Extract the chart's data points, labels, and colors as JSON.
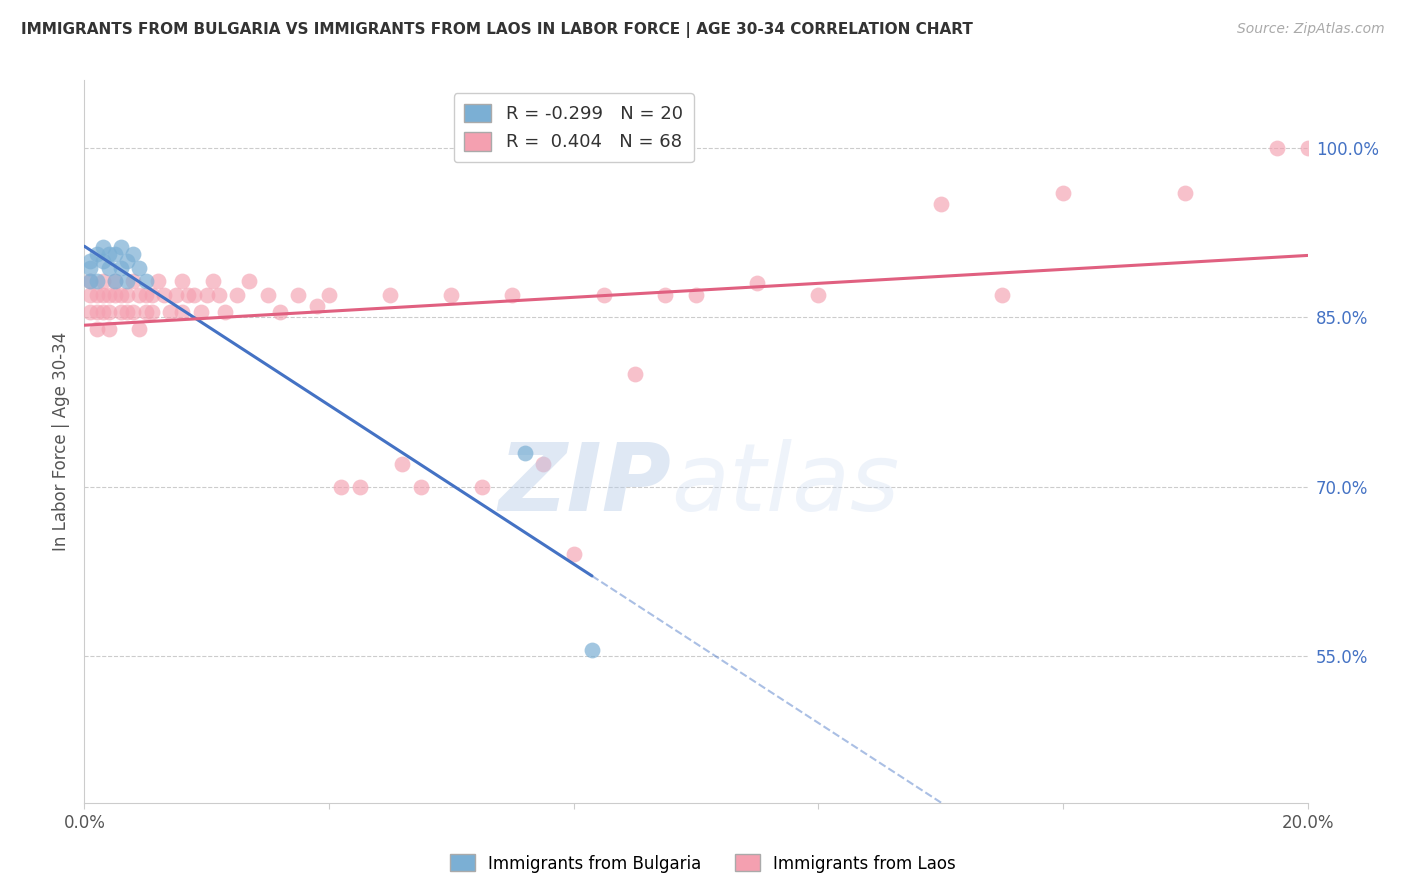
{
  "title": "IMMIGRANTS FROM BULGARIA VS IMMIGRANTS FROM LAOS IN LABOR FORCE | AGE 30-34 CORRELATION CHART",
  "source": "Source: ZipAtlas.com",
  "ylabel_label": "In Labor Force | Age 30-34",
  "xlim": [
    0.0,
    0.2
  ],
  "ylim": [
    0.42,
    1.06
  ],
  "x_ticks": [
    0.0,
    0.04,
    0.08,
    0.12,
    0.16,
    0.2
  ],
  "x_tick_labels": [
    "0.0%",
    "",
    "",
    "",
    "",
    "20.0%"
  ],
  "y_ticks_right": [
    0.55,
    0.7,
    0.85,
    1.0
  ],
  "y_tick_labels_right": [
    "55.0%",
    "70.0%",
    "85.0%",
    "100.0%"
  ],
  "bulgaria_R": -0.299,
  "bulgaria_N": 20,
  "laos_R": 0.404,
  "laos_N": 68,
  "bulgaria_color": "#7bafd4",
  "laos_color": "#f4a0b0",
  "bulgaria_line_color": "#4472c4",
  "laos_line_color": "#e06080",
  "bulgaria_x": [
    0.001,
    0.001,
    0.001,
    0.002,
    0.002,
    0.003,
    0.003,
    0.004,
    0.004,
    0.005,
    0.005,
    0.006,
    0.006,
    0.007,
    0.007,
    0.008,
    0.009,
    0.01,
    0.072,
    0.083
  ],
  "bulgaria_y": [
    0.882,
    0.894,
    0.9,
    0.882,
    0.906,
    0.9,
    0.912,
    0.894,
    0.906,
    0.882,
    0.906,
    0.894,
    0.912,
    0.9,
    0.882,
    0.906,
    0.894,
    0.882,
    0.73,
    0.555
  ],
  "laos_x": [
    0.001,
    0.001,
    0.001,
    0.002,
    0.002,
    0.002,
    0.003,
    0.003,
    0.003,
    0.004,
    0.004,
    0.004,
    0.005,
    0.005,
    0.006,
    0.006,
    0.007,
    0.007,
    0.008,
    0.008,
    0.009,
    0.009,
    0.01,
    0.01,
    0.011,
    0.011,
    0.012,
    0.013,
    0.014,
    0.015,
    0.016,
    0.016,
    0.017,
    0.018,
    0.019,
    0.02,
    0.021,
    0.022,
    0.023,
    0.025,
    0.027,
    0.03,
    0.032,
    0.035,
    0.038,
    0.04,
    0.042,
    0.045,
    0.05,
    0.052,
    0.055,
    0.06,
    0.065,
    0.07,
    0.075,
    0.08,
    0.085,
    0.09,
    0.095,
    0.1,
    0.11,
    0.12,
    0.14,
    0.15,
    0.16,
    0.18,
    0.195,
    0.2
  ],
  "laos_y": [
    0.882,
    0.855,
    0.87,
    0.87,
    0.855,
    0.84,
    0.87,
    0.855,
    0.882,
    0.87,
    0.855,
    0.84,
    0.882,
    0.87,
    0.87,
    0.855,
    0.87,
    0.855,
    0.882,
    0.855,
    0.87,
    0.84,
    0.87,
    0.855,
    0.87,
    0.855,
    0.882,
    0.87,
    0.855,
    0.87,
    0.882,
    0.855,
    0.87,
    0.87,
    0.855,
    0.87,
    0.882,
    0.87,
    0.855,
    0.87,
    0.882,
    0.87,
    0.855,
    0.87,
    0.86,
    0.87,
    0.7,
    0.7,
    0.87,
    0.72,
    0.7,
    0.87,
    0.7,
    0.87,
    0.72,
    0.64,
    0.87,
    0.8,
    0.87,
    0.87,
    0.88,
    0.87,
    0.95,
    0.87,
    0.96,
    0.96,
    1.0,
    1.0
  ]
}
